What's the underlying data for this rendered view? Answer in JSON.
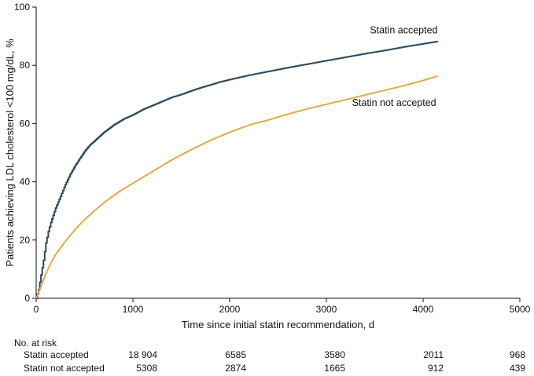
{
  "chart_data": {
    "type": "line",
    "title": "",
    "xlabel": "Time since initial statin recommendation, d",
    "ylabel": "Patients achieving LDL cholesterol <100 mg/dL, %",
    "xlim": [
      0,
      5000
    ],
    "ylim": [
      0,
      100
    ],
    "x_ticks": [
      "0",
      "1000",
      "2000",
      "3000",
      "4000",
      "5000"
    ],
    "y_ticks": [
      "0",
      "20",
      "40",
      "60",
      "80",
      "100"
    ],
    "grid": false,
    "series": [
      {
        "name": "Statin accepted",
        "color": "#2b4a5c",
        "step": true,
        "x": [
          0,
          25,
          50,
          75,
          100,
          125,
          150,
          200,
          250,
          300,
          350,
          400,
          450,
          500,
          550,
          600,
          700,
          800,
          900,
          1000,
          1100,
          1200,
          1300,
          1400,
          1500,
          1600,
          1700,
          1800,
          1900,
          2000,
          2200,
          2400,
          2600,
          2800,
          3000,
          3200,
          3400,
          3600,
          3800,
          4000,
          4150
        ],
        "y": [
          0,
          3,
          8,
          13,
          19,
          23,
          26,
          31,
          35,
          39,
          42.5,
          45.5,
          48,
          50.5,
          52.5,
          54,
          57,
          59.5,
          61.5,
          63,
          64.8,
          66.2,
          67.6,
          69,
          70,
          71.2,
          72.3,
          73.3,
          74.3,
          75.1,
          76.6,
          77.9,
          79.2,
          80.4,
          81.6,
          82.8,
          84,
          85.1,
          86.3,
          87.4,
          88.2
        ]
      },
      {
        "name": "Statin not accepted",
        "color": "#f0a030",
        "step": false,
        "x": [
          0,
          50,
          100,
          150,
          200,
          300,
          400,
          500,
          600,
          700,
          850,
          1000,
          1200,
          1400,
          1600,
          1800,
          2000,
          2200,
          2400,
          2600,
          2800,
          3000,
          3200,
          3400,
          3600,
          3800,
          4000,
          4150
        ],
        "y": [
          0,
          4,
          8.5,
          12,
          15,
          19.5,
          23.5,
          27,
          30,
          32.8,
          36.5,
          39.5,
          43.5,
          47.5,
          51,
          54.2,
          57,
          59.5,
          61.2,
          63.2,
          65,
          66.6,
          68.2,
          69.8,
          71.4,
          73,
          74.8,
          76.3
        ]
      }
    ],
    "annotations": [
      {
        "text": "Statin accepted",
        "x": 3800,
        "y": 91
      },
      {
        "text": "Statin not accepted",
        "x": 3700,
        "y": 66
      }
    ],
    "risk_table": {
      "title": "No. at risk",
      "rows": [
        {
          "label": "Statin accepted",
          "values": [
            "18 904",
            "6585",
            "3580",
            "2011",
            "968"
          ]
        },
        {
          "label": "Statin not accepted",
          "values": [
            "5308",
            "2874",
            "1665",
            "912",
            "439"
          ]
        }
      ]
    }
  }
}
